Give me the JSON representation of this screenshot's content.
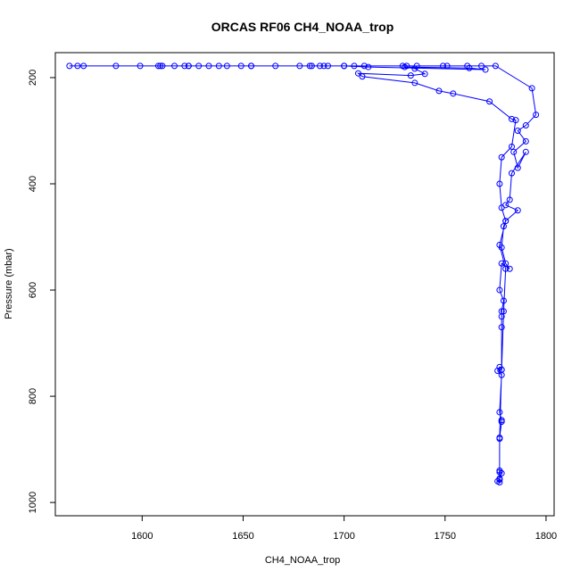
{
  "chart_data": {
    "type": "line",
    "title": "ORCAS RF06 CH4_NOAA_trop",
    "xlabel": "CH4_NOAA_trop",
    "ylabel": "Pressure (mbar)",
    "xlim": [
      1557,
      1804
    ],
    "ylim": [
      1025,
      153
    ],
    "x_ticks": [
      1600,
      1650,
      1700,
      1750,
      1800
    ],
    "y_ticks": [
      200,
      400,
      600,
      800,
      1000
    ],
    "y_reversed": true,
    "grid": false,
    "legend": "none",
    "series": [
      {
        "color": "#0000ff",
        "marker": "open-circle",
        "x": [
          1564,
          1568,
          1571,
          1587,
          1599,
          1608,
          1610,
          1616,
          1621,
          1623,
          1628,
          1633,
          1638,
          1642,
          1649,
          1654,
          1666,
          1678,
          1684,
          1688,
          1692,
          1700,
          1705,
          1710,
          1729,
          1731,
          1736,
          1749,
          1751,
          1761,
          1768,
          1775,
          1793,
          1795,
          1790,
          1786,
          1790,
          1784,
          1786,
          1790,
          1783,
          1782,
          1780,
          1786,
          1780,
          1779,
          1778,
          1780,
          1782,
          1778,
          1777,
          1779,
          1778,
          1778,
          1778,
          1778,
          1777,
          1776,
          1778,
          1777,
          1778,
          1778,
          1777,
          1777,
          1778,
          1777,
          1777,
          1776,
          1777,
          1777,
          1777,
          1778,
          1779,
          1780,
          1777,
          1780,
          1778,
          1777,
          1778,
          1783,
          1785,
          1783,
          1772,
          1754,
          1747,
          1735,
          1709,
          1707,
          1733,
          1740,
          1735,
          1730,
          1762,
          1770,
          1712,
          1700,
          1690,
          1683,
          1654,
          1623,
          1609
        ],
        "y": [
          178,
          178,
          178,
          178,
          178,
          178,
          178,
          178,
          178,
          178,
          178,
          178,
          178,
          178,
          178,
          178,
          178,
          178,
          178,
          178,
          178,
          178,
          178,
          178,
          178,
          178,
          178,
          178,
          178,
          178,
          178,
          178,
          220,
          270,
          290,
          300,
          320,
          340,
          370,
          340,
          380,
          430,
          440,
          450,
          470,
          480,
          520,
          550,
          560,
          550,
          600,
          620,
          640,
          650,
          670,
          750,
          745,
          752,
          760,
          830,
          845,
          848,
          878,
          940,
          945,
          955,
          957,
          960,
          962,
          943,
          880,
          750,
          640,
          560,
          515,
          470,
          445,
          400,
          350,
          330,
          280,
          278,
          245,
          230,
          225,
          210,
          198,
          192,
          196,
          193,
          183,
          180,
          182,
          185,
          180,
          178,
          178,
          178,
          178,
          178,
          178
        ]
      }
    ]
  }
}
